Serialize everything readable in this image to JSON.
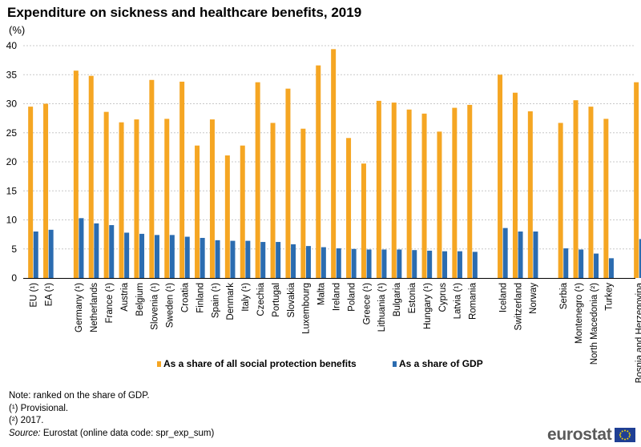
{
  "title": "Expenditure on sickness and healthcare benefits, 2019",
  "unit": "(%)",
  "notes": {
    "note": "Note: ranked on the share of GDP.",
    "fn1": "(¹) Provisional.",
    "fn2": "(²) 2017.",
    "source_label": "Source:",
    "source_text": " Eurostat (online data code: spr_exp_sum)"
  },
  "logo": {
    "text": "eurostat",
    "icon": "eu-flag-icon"
  },
  "colors": {
    "social": "#f5a623",
    "gdp": "#2b6cb0",
    "grid": "#c8c8c8",
    "axis": "#000000"
  },
  "chart_data": {
    "type": "bar",
    "title": "Expenditure on sickness and healthcare benefits, 2019",
    "ylabel": "(%)",
    "ylim": [
      0,
      40
    ],
    "yticks": [
      0,
      5,
      10,
      15,
      20,
      25,
      30,
      35,
      40
    ],
    "grid": true,
    "legend": "bottom-center",
    "groups": [
      [
        "EU (¹)",
        "EA (¹)"
      ],
      [
        "Germany (¹)",
        "Netherlands",
        "France (¹)",
        "Austria",
        "Belgium",
        "Slovenia (¹)",
        "Sweden (¹)",
        "Croatia",
        "Finland",
        "Spain (¹)",
        "Denmark",
        "Italy (¹)",
        "Czechia",
        "Portugal",
        "Slovakia",
        "Luxembourg",
        "Malta",
        "Ireland",
        "Poland",
        "Greece (¹)",
        "Lithuania (¹)",
        "Bulgaria",
        "Estonia",
        "Hungary (¹)",
        "Cyprus",
        "Latvia (¹)",
        "Romania"
      ],
      [
        "Iceland",
        "Switzerland",
        "Norway"
      ],
      [
        "Serbia",
        "Montenegro (¹)",
        "North Macedonia (²)",
        "Turkey"
      ],
      [
        "Bosnia and Herzegovina"
      ]
    ],
    "categories": [
      "EU (¹)",
      "EA (¹)",
      "Germany (¹)",
      "Netherlands",
      "France (¹)",
      "Austria",
      "Belgium",
      "Slovenia (¹)",
      "Sweden (¹)",
      "Croatia",
      "Finland",
      "Spain (¹)",
      "Denmark",
      "Italy (¹)",
      "Czechia",
      "Portugal",
      "Slovakia",
      "Luxembourg",
      "Malta",
      "Ireland",
      "Poland",
      "Greece (¹)",
      "Lithuania (¹)",
      "Bulgaria",
      "Estonia",
      "Hungary (¹)",
      "Cyprus",
      "Latvia (¹)",
      "Romania",
      "Iceland",
      "Switzerland",
      "Norway",
      "Serbia",
      "Montenegro (¹)",
      "North Macedonia (²)",
      "Turkey",
      "Bosnia and Herzegovina"
    ],
    "series": [
      {
        "name": "As a share of all social protection benefits",
        "color": "#f5a623",
        "values": [
          29.5,
          30.0,
          35.7,
          34.8,
          28.6,
          26.8,
          27.3,
          34.1,
          27.4,
          33.8,
          22.8,
          27.3,
          21.1,
          22.8,
          33.7,
          26.7,
          32.6,
          25.7,
          36.6,
          39.4,
          24.1,
          19.7,
          30.5,
          30.2,
          29.0,
          28.3,
          25.2,
          29.3,
          29.8,
          35.0,
          31.9,
          28.7,
          26.7,
          30.6,
          29.5,
          27.4,
          33.7
        ]
      },
      {
        "name": "As a share of GDP",
        "color": "#2b6cb0",
        "values": [
          8.0,
          8.3,
          10.3,
          9.4,
          9.1,
          7.8,
          7.6,
          7.4,
          7.4,
          7.1,
          6.9,
          6.5,
          6.4,
          6.4,
          6.2,
          6.2,
          5.8,
          5.5,
          5.3,
          5.1,
          5.0,
          4.9,
          4.9,
          4.9,
          4.8,
          4.7,
          4.6,
          4.6,
          4.5,
          8.6,
          8.0,
          8.0,
          5.1,
          4.9,
          4.2,
          3.4,
          6.7
        ]
      }
    ]
  }
}
